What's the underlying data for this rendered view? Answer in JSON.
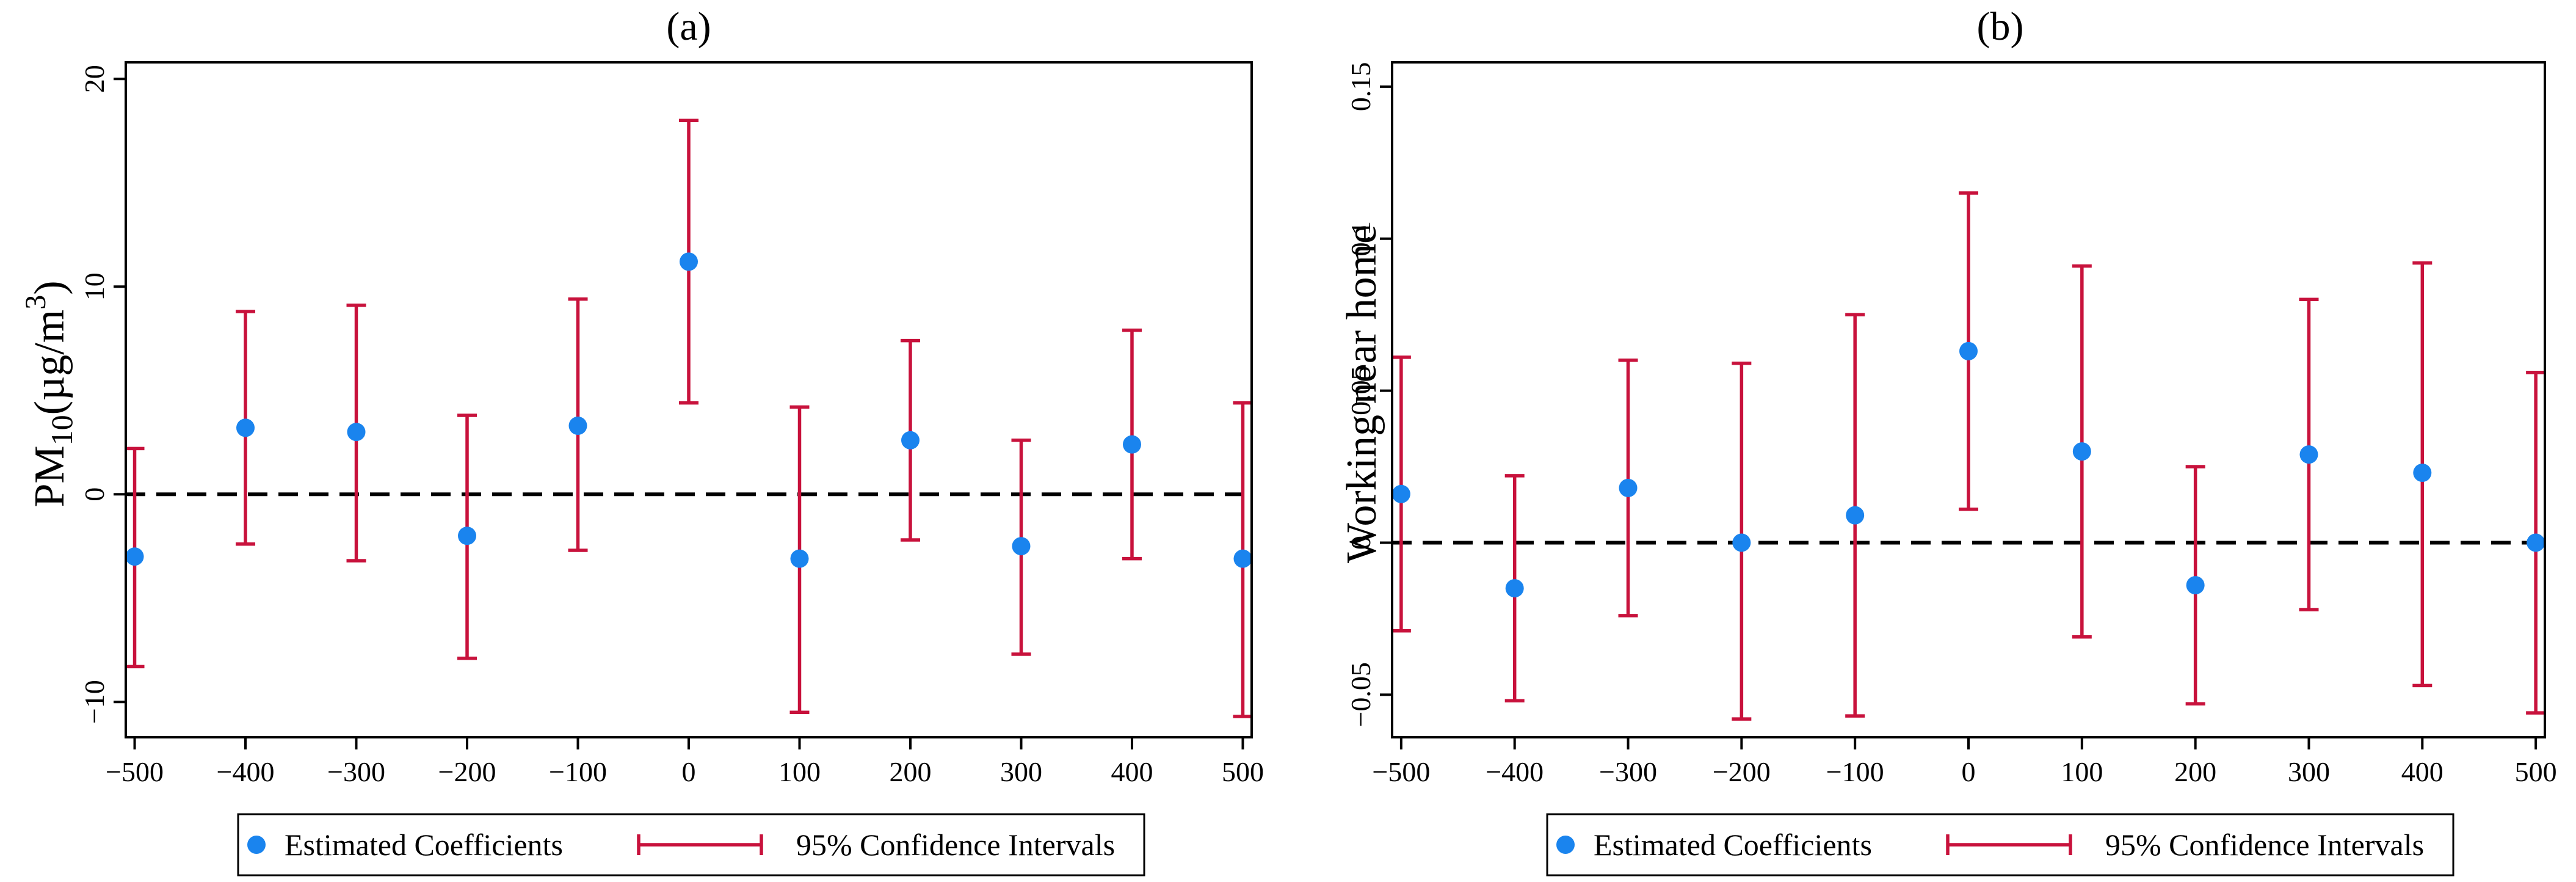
{
  "chart_data": [
    {
      "type": "scatter",
      "subtype": "coefficient-plot-with-error-bars",
      "title": "(a)",
      "ylabel_main": "PM",
      "ylabel_sub": "10",
      "ylabel_unit": "(µg/m",
      "ylabel_sup": "3",
      "ylabel_close": ")",
      "xlabel": "",
      "x": [
        -500,
        -400,
        -300,
        -200,
        -100,
        0,
        100,
        200,
        300,
        400,
        500
      ],
      "xlim": [
        -508,
        508
      ],
      "ylim": [
        -11.7,
        20.8
      ],
      "xticks": [
        -500,
        -400,
        -300,
        -200,
        -100,
        0,
        100,
        200,
        300,
        400,
        500
      ],
      "xtick_labels": [
        "−500",
        "−400",
        "−300",
        "−200",
        "−100",
        "0",
        "100",
        "200",
        "300",
        "400",
        "500"
      ],
      "yticks": [
        -10,
        0,
        10,
        20
      ],
      "ytick_labels": [
        "−10",
        "0",
        "10",
        "20"
      ],
      "reference_line": 0,
      "series": [
        {
          "name": "Estimated Coefficients",
          "values": [
            -3.0,
            3.2,
            3.0,
            -2.0,
            3.3,
            11.2,
            -3.1,
            2.6,
            -2.5,
            2.4,
            -3.1
          ]
        },
        {
          "name": "95% Confidence Intervals",
          "lower": [
            -8.3,
            -2.4,
            -3.2,
            -7.9,
            -2.7,
            4.4,
            -10.5,
            -2.2,
            -7.7,
            -3.1,
            -10.7
          ],
          "upper": [
            2.2,
            8.8,
            9.1,
            3.8,
            9.4,
            18.0,
            4.2,
            7.4,
            2.6,
            7.9,
            4.4
          ]
        }
      ],
      "legend": {
        "placement": "bottom",
        "points_label": "Estimated Coefficients",
        "ci_label": "95% Confidence Intervals"
      },
      "colors": {
        "points": "#1a84ee",
        "ci": "#c8123c"
      }
    },
    {
      "type": "scatter",
      "subtype": "coefficient-plot-with-error-bars",
      "title": "(b)",
      "ylabel": "Working near home",
      "xlabel": "",
      "x": [
        -500,
        -400,
        -300,
        -200,
        -100,
        0,
        100,
        200,
        300,
        400,
        500
      ],
      "xlim": [
        -508,
        508
      ],
      "ylim": [
        -0.064,
        0.158
      ],
      "xticks": [
        -500,
        -400,
        -300,
        -200,
        -100,
        0,
        100,
        200,
        300,
        400,
        500
      ],
      "xtick_labels": [
        "−500",
        "−400",
        "−300",
        "−200",
        "−100",
        "0",
        "100",
        "200",
        "300",
        "400",
        "500"
      ],
      "yticks": [
        -0.05,
        0,
        0.05,
        0.1,
        0.15
      ],
      "ytick_labels": [
        "−0.05",
        "0",
        "0.05",
        "0.1",
        "0.15"
      ],
      "reference_line": 0,
      "series": [
        {
          "name": "Estimated Coefficients",
          "values": [
            0.016,
            -0.015,
            0.018,
            0.0,
            0.009,
            0.063,
            0.03,
            -0.014,
            0.029,
            0.023,
            0.0
          ]
        },
        {
          "name": "95% Confidence Intervals",
          "lower": [
            -0.029,
            -0.052,
            -0.024,
            -0.058,
            -0.057,
            0.011,
            -0.031,
            -0.053,
            -0.022,
            -0.047,
            -0.056
          ],
          "upper": [
            0.061,
            0.022,
            0.06,
            0.059,
            0.075,
            0.115,
            0.091,
            0.025,
            0.08,
            0.092,
            0.056
          ]
        }
      ],
      "legend": {
        "placement": "bottom",
        "points_label": "Estimated Coefficients",
        "ci_label": "95% Confidence Intervals"
      },
      "colors": {
        "points": "#1a84ee",
        "ci": "#c8123c"
      }
    }
  ]
}
